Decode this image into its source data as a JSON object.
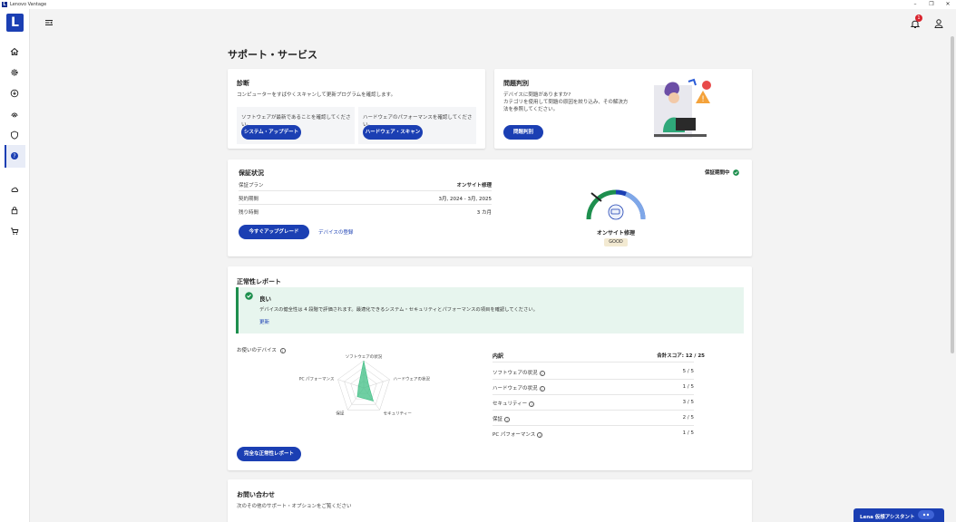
{
  "window": {
    "title": "Lenovo Vantage",
    "logo_letter": "L",
    "minimize": "–",
    "maximize": "❐",
    "close": "✕"
  },
  "sidebar": {
    "brand_letter": "L"
  },
  "header": {
    "notification_count": "1"
  },
  "page": {
    "title": "サポート・サービス"
  },
  "diagnosis": {
    "title": "診断",
    "subtitle": "コンピューターをすばやくスキャンして更新プログラムを確認します。",
    "software_text": "ソフトウェアが最新であることを確認してください。",
    "software_button": "システム・アップデート",
    "hardware_text": "ハードウェアのパフォーマンスを確認してください。",
    "hardware_button": "ハードウェア・スキャン"
  },
  "troubleshoot": {
    "title": "問題判別",
    "line1": "デバイスに問題がありますか?",
    "line2": "カテゴリを使用して問題の原因を絞り込み、その解決方",
    "line3": "法を参照してください。",
    "button": "問題判別"
  },
  "warranty": {
    "title": "保証状況",
    "status": "保証期間中",
    "rows": [
      {
        "label": "保証プラン",
        "value": "オンサイト修理"
      },
      {
        "label": "契約期間",
        "value": "3月, 2024 - 3月, 2025"
      },
      {
        "label": "残り時間",
        "value": "3 カ月"
      }
    ],
    "upgrade_button": "今すぐアップグレード",
    "register_link": "デバイスの登録",
    "gauge_label": "オンサイト修理",
    "gauge_badge": "GOOD"
  },
  "health": {
    "title": "正常性レポート",
    "banner_title": "良い",
    "banner_text": "デバイスの健全性は 4 段階で評価されます。最適化できるシステム・セキュリティとパフォーマンスの項目を確認してください。",
    "banner_link": "更新",
    "device_label": "お使いのデバイス",
    "radar_axes": [
      "ソフトウェアの状況",
      "ハードウェアの状況",
      "セキュリティー",
      "保証",
      "PC パフォーマンス"
    ],
    "radar_values": [
      5,
      1,
      3,
      2,
      1
    ],
    "radar_max": 5,
    "breakdown_title": "内訳",
    "total_score": "合計スコア: 12 / 25",
    "breakdown": [
      {
        "label": "ソフトウェアの状況",
        "value": "5 / 5"
      },
      {
        "label": "ハードウェアの状況",
        "value": "1 / 5"
      },
      {
        "label": "セキュリティー",
        "value": "3 / 5"
      },
      {
        "label": "保証",
        "value": "2 / 5"
      },
      {
        "label": "PC パフォーマンス",
        "value": "1 / 5"
      }
    ],
    "full_report_button": "完全な正常性レポート"
  },
  "contact": {
    "title": "お問い合わせ",
    "subtitle": "次のその他のサポート・オプションをご覧ください"
  },
  "assistant": {
    "label": "Lena 仮想アシスタント"
  },
  "colors": {
    "accent": "#1b3fb3",
    "good": "#1e8f4e",
    "radar_fill": "#3fbf84",
    "gauge_green": "#1e8f4e",
    "gauge_blue": "#1b3fb3"
  }
}
